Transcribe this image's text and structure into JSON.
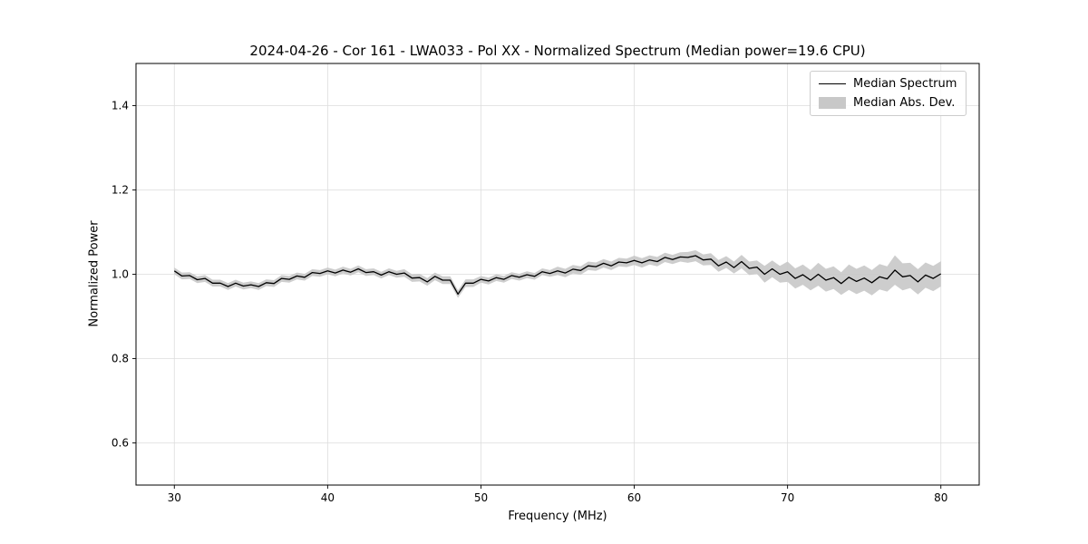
{
  "figure": {
    "title": "2024-04-26 - Cor 161 - LWA033 - Pol XX - Normalized Spectrum (Median power=19.6 CPU)",
    "xlabel": "Frequency (MHz)",
    "ylabel": "Normalized Power"
  },
  "legend": {
    "position": "upper right",
    "items": [
      {
        "label": "Median Spectrum",
        "type": "line",
        "color": "#000000"
      },
      {
        "label": "Median Abs. Dev.",
        "type": "patch",
        "color": "#c8c8c8"
      }
    ]
  },
  "chart_data": {
    "type": "line",
    "title": "2024-04-26 - Cor 161 - LWA033 - Pol XX - Normalized Spectrum (Median power=19.6 CPU)",
    "xlabel": "Frequency (MHz)",
    "ylabel": "Normalized Power",
    "xlim": [
      27.5,
      82.5
    ],
    "ylim": [
      0.5,
      1.5
    ],
    "xticks": [
      30,
      40,
      50,
      60,
      70,
      80
    ],
    "xtick_labels": [
      "30",
      "40",
      "50",
      "60",
      "70",
      "80"
    ],
    "yticks": [
      0.6,
      0.8,
      1.0,
      1.2,
      1.4
    ],
    "ytick_labels": [
      "0.6",
      "0.8",
      "1.0",
      "1.2",
      "1.4"
    ],
    "grid": true,
    "grid_color": "#dddddd",
    "line_color": "#000000",
    "band_color": "#c8c8c8",
    "x": [
      30,
      30.5,
      31,
      31.5,
      32,
      32.5,
      33,
      33.5,
      34,
      34.5,
      35,
      35.5,
      36,
      36.5,
      37,
      37.5,
      38,
      38.5,
      39,
      39.5,
      40,
      40.5,
      41,
      41.5,
      42,
      42.5,
      43,
      43.5,
      44,
      44.5,
      45,
      45.5,
      46,
      46.5,
      47,
      47.5,
      48,
      48.5,
      49,
      49.5,
      50,
      50.5,
      51,
      51.5,
      52,
      52.5,
      53,
      53.5,
      54,
      54.5,
      55,
      55.5,
      56,
      56.5,
      57,
      57.5,
      58,
      58.5,
      59,
      59.5,
      60,
      60.5,
      61,
      61.5,
      62,
      62.5,
      63,
      63.5,
      64,
      64.5,
      65,
      65.5,
      66,
      66.5,
      67,
      67.5,
      68,
      68.5,
      69,
      69.5,
      70,
      70.5,
      71,
      71.5,
      72,
      72.5,
      73,
      73.5,
      74,
      74.5,
      75,
      75.5,
      76,
      76.5,
      77,
      77.5,
      78,
      78.5,
      79,
      79.5,
      80
    ],
    "y_median": [
      1.008,
      0.996,
      0.997,
      0.987,
      0.99,
      0.979,
      0.979,
      0.971,
      0.979,
      0.972,
      0.975,
      0.971,
      0.98,
      0.978,
      0.99,
      0.988,
      0.996,
      0.993,
      1.004,
      1.002,
      1.008,
      1.003,
      1.01,
      1.005,
      1.013,
      1.004,
      1.006,
      0.998,
      1.006,
      1.0,
      1.003,
      0.991,
      0.992,
      0.982,
      0.995,
      0.986,
      0.986,
      0.953,
      0.979,
      0.979,
      0.988,
      0.984,
      0.992,
      0.988,
      0.997,
      0.993,
      0.999,
      0.995,
      1.006,
      1.002,
      1.008,
      1.003,
      1.012,
      1.009,
      1.02,
      1.018,
      1.026,
      1.02,
      1.029,
      1.027,
      1.033,
      1.027,
      1.034,
      1.03,
      1.04,
      1.035,
      1.041,
      1.04,
      1.044,
      1.034,
      1.036,
      1.02,
      1.029,
      1.016,
      1.03,
      1.014,
      1.017,
      1.0,
      1.013,
      1.0,
      1.006,
      0.99,
      0.999,
      0.986,
      1.0,
      0.986,
      0.992,
      0.978,
      0.993,
      0.983,
      0.991,
      0.98,
      0.994,
      0.989,
      1.01,
      0.994,
      0.997,
      0.982,
      0.998,
      0.99,
      1.001
    ],
    "mad": [
      0.008,
      0.008,
      0.008,
      0.008,
      0.008,
      0.008,
      0.008,
      0.008,
      0.008,
      0.008,
      0.008,
      0.008,
      0.008,
      0.008,
      0.008,
      0.008,
      0.008,
      0.008,
      0.008,
      0.008,
      0.008,
      0.008,
      0.008,
      0.008,
      0.008,
      0.008,
      0.008,
      0.008,
      0.008,
      0.008,
      0.009,
      0.009,
      0.009,
      0.009,
      0.009,
      0.009,
      0.009,
      0.009,
      0.009,
      0.009,
      0.008,
      0.008,
      0.008,
      0.008,
      0.008,
      0.008,
      0.008,
      0.008,
      0.008,
      0.008,
      0.01,
      0.01,
      0.01,
      0.01,
      0.01,
      0.01,
      0.01,
      0.01,
      0.01,
      0.01,
      0.011,
      0.011,
      0.011,
      0.011,
      0.011,
      0.011,
      0.011,
      0.013,
      0.013,
      0.013,
      0.014,
      0.014,
      0.014,
      0.014,
      0.016,
      0.016,
      0.016,
      0.02,
      0.02,
      0.02,
      0.024,
      0.024,
      0.024,
      0.024,
      0.027,
      0.027,
      0.027,
      0.027,
      0.03,
      0.03,
      0.03,
      0.03,
      0.03,
      0.03,
      0.035,
      0.032,
      0.03,
      0.03,
      0.03,
      0.03,
      0.03
    ],
    "series": [
      {
        "name": "Median Spectrum",
        "style": "line",
        "color": "#000000"
      },
      {
        "name": "Median Abs. Dev.",
        "style": "band",
        "color": "#c8c8c8"
      }
    ]
  }
}
